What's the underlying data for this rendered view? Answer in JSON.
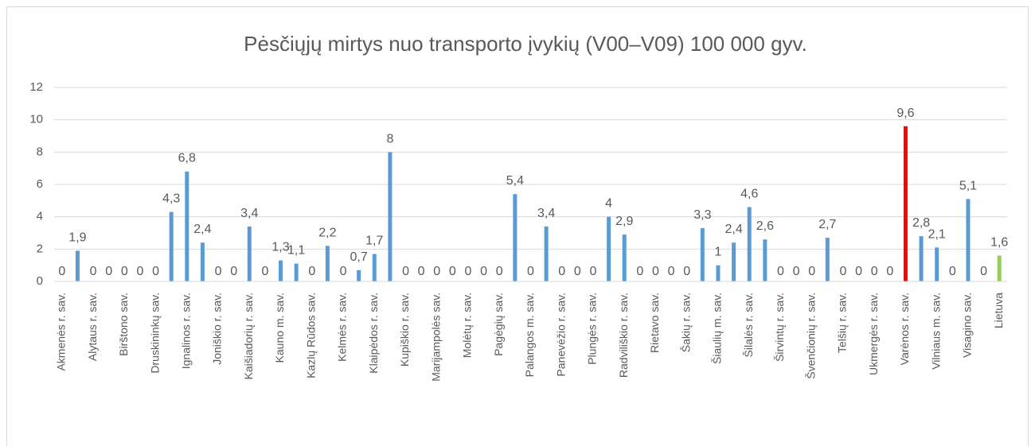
{
  "chart_data": {
    "type": "bar",
    "title": "Pėsčiųjų mirtys nuo transporto įvykių (V00–V09) 100 000 gyv.",
    "categories": [
      "Akmenės r. sav.",
      null,
      "Alytaus r. sav.",
      null,
      "Birštono sav.",
      null,
      "Druskininkų sav.",
      null,
      "Ignalinos r. sav.",
      null,
      "Joniškio r. sav.",
      null,
      "Kaišiadorių r. sav.",
      null,
      "Kauno m. sav.",
      null,
      "Kazlų Rūdos sav.",
      null,
      "Kelmės r. sav.",
      null,
      "Klaipėdos r. sav.",
      null,
      "Kupiškio r. sav.",
      null,
      "Marijampolės sav.",
      null,
      "Molėtų r. sav.",
      null,
      "Pagėgių sav.",
      null,
      "Palangos m. sav.",
      null,
      "Panevėžio r. sav.",
      null,
      "Plungės r. sav.",
      null,
      "Radviliškio r. sav.",
      null,
      "Rietavo sav.",
      null,
      "Šakių r. sav.",
      null,
      "Šiaulių m. sav.",
      null,
      "Šilalės r. sav.",
      null,
      "Širvintų r. sav.",
      null,
      "Švenčionių r. sav.",
      null,
      "Telšių r. sav.",
      null,
      "Ukmergės r. sav.",
      null,
      "Varėnos r. sav.",
      null,
      "Vilniaus m. sav.",
      null,
      "Visagino sav.",
      null,
      "Lietuva"
    ],
    "values": [
      0,
      1.9,
      0,
      0,
      0,
      0,
      0,
      4.3,
      6.8,
      2.4,
      0,
      0,
      3.4,
      0,
      1.3,
      1.1,
      0,
      2.2,
      0,
      0.7,
      1.7,
      8,
      0,
      0,
      0,
      0,
      0,
      0,
      0,
      5.4,
      0,
      3.4,
      0,
      0,
      0,
      4,
      2.9,
      0,
      0,
      0,
      0,
      3.3,
      1,
      2.4,
      4.6,
      2.6,
      0,
      0,
      0,
      2.7,
      0,
      0,
      0,
      0,
      9.6,
      2.8,
      2.1,
      0,
      5.1,
      0,
      1.6
    ],
    "value_labels": [
      "0",
      "1,9",
      "0",
      "0",
      "0",
      "0",
      "0",
      "4,3",
      "6,8",
      "2,4",
      "0",
      "0",
      "3,4",
      "0",
      "1,3",
      "1,1",
      "0",
      "2,2",
      "0",
      "0,7",
      "1,7",
      "8",
      "0",
      "0",
      "0",
      "0",
      "0",
      "0",
      "0",
      "5,4",
      "0",
      "3,4",
      "0",
      "0",
      "0",
      "4",
      "2,9",
      "0",
      "0",
      "0",
      "0",
      "3,3",
      "1",
      "2,4",
      "4,6",
      "2,6",
      "0",
      "0",
      "0",
      "2,7",
      "0",
      "0",
      "0",
      "0",
      "9,6",
      "2,8",
      "2,1",
      "0",
      "5,1",
      "0",
      "1,6"
    ],
    "color": "#5b9bd5",
    "highlight_colors": {
      "54": "#ff0000",
      "60": "#92d050"
    },
    "ylim": [
      0,
      12
    ],
    "yticks": [
      0,
      2,
      4,
      6,
      8,
      10,
      12
    ],
    "grid": true
  }
}
